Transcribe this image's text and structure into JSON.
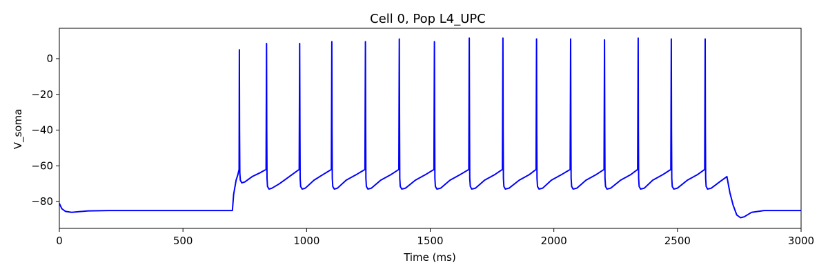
{
  "chart_data": {
    "type": "line",
    "title": "Cell 0, Pop L4_UPC",
    "xlabel": "Time (ms)",
    "ylabel": "V_soma",
    "xlim": [
      0,
      3000
    ],
    "ylim": [
      -95,
      17
    ],
    "xticks": [
      0,
      500,
      1000,
      1500,
      2000,
      2500,
      3000
    ],
    "yticks": [
      -80,
      -60,
      -40,
      -20,
      0
    ],
    "grid": false,
    "series": [
      {
        "color": "#0000ff",
        "x": [
          0,
          10,
          25,
          50,
          80,
          120,
          200,
          400,
          700,
          705,
          715,
          722,
          727,
          728,
          729,
          730,
          732,
          738,
          750,
          780,
          810,
          836,
          838,
          839,
          840,
          842,
          848,
          860,
          890,
          930,
          970,
          972,
          973,
          974,
          976,
          982,
          995,
          1030,
          1065,
          1100,
          1102,
          1103,
          1104,
          1106,
          1112,
          1125,
          1160,
          1200,
          1236,
          1238,
          1239,
          1240,
          1242,
          1248,
          1262,
          1300,
          1340,
          1373,
          1375,
          1376,
          1377,
          1379,
          1385,
          1400,
          1440,
          1480,
          1515,
          1517,
          1518,
          1519,
          1521,
          1527,
          1542,
          1580,
          1620,
          1656,
          1658,
          1659,
          1660,
          1662,
          1668,
          1683,
          1720,
          1760,
          1792,
          1794,
          1795,
          1796,
          1798,
          1804,
          1819,
          1860,
          1900,
          1928,
          1930,
          1931,
          1932,
          1934,
          1940,
          1955,
          1990,
          2030,
          2066,
          2068,
          2069,
          2070,
          2072,
          2078,
          2093,
          2130,
          2170,
          2203,
          2205,
          2206,
          2207,
          2209,
          2215,
          2230,
          2270,
          2310,
          2339,
          2341,
          2342,
          2343,
          2345,
          2351,
          2366,
          2400,
          2440,
          2473,
          2475,
          2476,
          2477,
          2479,
          2485,
          2500,
          2540,
          2580,
          2610,
          2612,
          2613,
          2614,
          2616,
          2622,
          2637,
          2670,
          2700,
          2712,
          2725,
          2740,
          2755,
          2770,
          2800,
          2850,
          2900,
          3000
        ],
        "y": [
          -81,
          -84,
          -85.5,
          -86,
          -85.6,
          -85.2,
          -85,
          -85,
          -85,
          -76,
          -68,
          -65,
          -62,
          5,
          -40,
          -64,
          -68,
          -69.5,
          -69,
          -66,
          -64,
          -62,
          8.5,
          -40,
          -67,
          -71.5,
          -73,
          -72.5,
          -70,
          -66,
          -62,
          8.5,
          -40,
          -67,
          -71.5,
          -73,
          -72.5,
          -68,
          -65,
          -62,
          9.5,
          -40,
          -67,
          -71.5,
          -73,
          -72.5,
          -68,
          -65,
          -62,
          9.5,
          -40,
          -67,
          -71.5,
          -73,
          -72.5,
          -68,
          -65,
          -62,
          11,
          -40,
          -67,
          -71.5,
          -73,
          -72.5,
          -68,
          -65,
          -62,
          9.5,
          -40,
          -67,
          -71.5,
          -73,
          -72.5,
          -68,
          -65,
          -62,
          11.5,
          -40,
          -67,
          -71.5,
          -73,
          -72.5,
          -68,
          -65,
          -62,
          11.5,
          -40,
          -67,
          -71.5,
          -73,
          -72.5,
          -68,
          -65,
          -62,
          11,
          -40,
          -67,
          -71.5,
          -73,
          -72.5,
          -68,
          -65,
          -62,
          11,
          -40,
          -67,
          -71.5,
          -73,
          -72.5,
          -68,
          -65,
          -62,
          10.5,
          -40,
          -67,
          -71.5,
          -73,
          -72.5,
          -68,
          -65,
          -62,
          11.5,
          -40,
          -67,
          -71.5,
          -73,
          -72.5,
          -68,
          -65,
          -62,
          11,
          -40,
          -67,
          -71.5,
          -73,
          -72.5,
          -68,
          -65,
          -62,
          11,
          -40,
          -67,
          -71.5,
          -73,
          -72.5,
          -69,
          -66,
          -75,
          -82,
          -87.5,
          -89,
          -88.5,
          -86,
          -85,
          -85,
          -85
        ]
      }
    ]
  }
}
